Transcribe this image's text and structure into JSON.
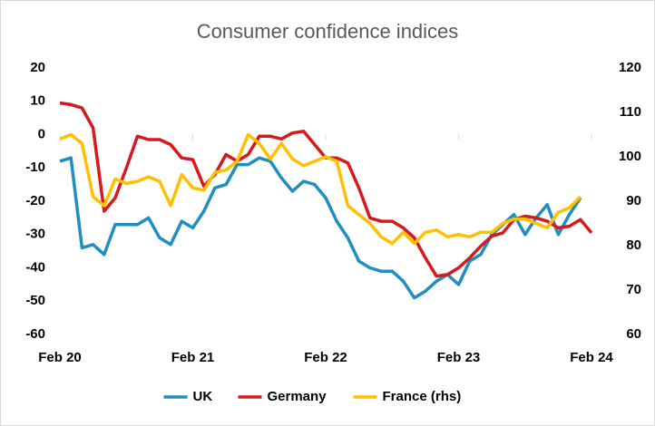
{
  "chart_data": {
    "type": "line",
    "title": "Consumer confidence indices",
    "categories": [
      "Feb 20",
      null,
      null,
      null,
      null,
      null,
      null,
      null,
      null,
      null,
      null,
      null,
      "Feb 21",
      null,
      null,
      null,
      null,
      null,
      null,
      null,
      null,
      null,
      null,
      null,
      "Feb 22",
      null,
      null,
      null,
      null,
      null,
      null,
      null,
      null,
      null,
      null,
      null,
      "Feb 23",
      null,
      null,
      null,
      null,
      null,
      null,
      null,
      null,
      null,
      null,
      null,
      "Feb 24"
    ],
    "series": [
      {
        "name": "UK",
        "color": "#1f8fbf",
        "axis": "y",
        "values": [
          -8,
          -7,
          -34,
          -33,
          -36,
          -27,
          -27,
          -27,
          -25,
          -31,
          -33,
          -26,
          -28,
          -23,
          -16,
          -15,
          -9,
          -9,
          -7,
          -8,
          -13,
          -17,
          -14,
          -15,
          -19,
          -26,
          -31,
          -38,
          -40,
          -41,
          -41,
          -44,
          -49,
          -47,
          -44,
          -42,
          -45,
          -38,
          -36,
          -30,
          -27,
          -24,
          -30,
          -25,
          -21,
          -30,
          -24,
          -19,
          null
        ]
      },
      {
        "name": "Germany",
        "color": "#d7191c",
        "axis": "y",
        "values": [
          9.5,
          9,
          8,
          2,
          -23,
          -19,
          -10,
          -0.5,
          -1.5,
          -1.5,
          -3,
          -7,
          -7.5,
          -15.5,
          -12,
          -6,
          -8,
          -6,
          -0.5,
          -0.5,
          -1.3,
          0.5,
          1,
          -3,
          -7,
          -7,
          -8.5,
          -16,
          -25,
          -26,
          -26,
          -28,
          -31,
          -37,
          -42.5,
          -42,
          -40,
          -37,
          -33.5,
          -30.5,
          -29.5,
          -25.5,
          -24.5,
          -25,
          -26,
          -28,
          -27.5,
          -25.5,
          -29.5
        ]
      },
      {
        "name": "France (rhs)",
        "color": "#ffc000",
        "axis": "y2",
        "values": [
          104,
          105,
          103,
          91,
          89,
          95,
          94,
          94.5,
          95.5,
          94.5,
          89,
          96,
          93,
          92.5,
          96.5,
          97,
          99,
          105,
          103,
          99.5,
          103,
          99.5,
          98,
          99,
          100,
          99,
          89,
          87,
          85,
          82,
          80.5,
          83,
          80.5,
          83,
          83.5,
          82,
          82.5,
          82,
          83,
          83,
          85,
          86,
          86,
          85,
          84,
          87.5,
          88.5,
          91,
          null
        ]
      }
    ],
    "ylim": [
      -60,
      20
    ],
    "yticks": [
      -60,
      -50,
      -40,
      -30,
      -20,
      -10,
      0,
      10,
      20
    ],
    "y2lim": [
      60,
      120
    ],
    "y2ticks": [
      60,
      70,
      80,
      90,
      100,
      110,
      120
    ],
    "legend": "bottom"
  }
}
